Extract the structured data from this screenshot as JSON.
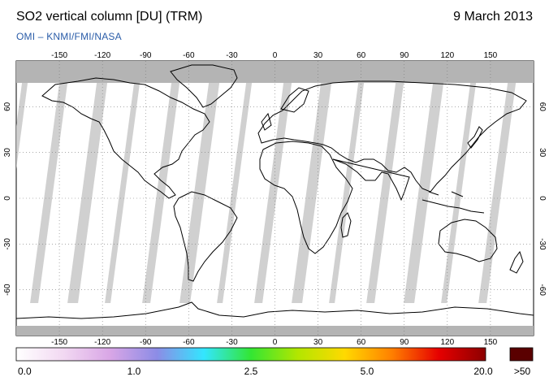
{
  "header": {
    "title": "SO2 vertical column [DU] (TRM)",
    "date": "9 March 2013",
    "credit": "OMI  –  KNMI/FMI/NASA"
  },
  "map": {
    "lon_ticks": [
      -150,
      -120,
      -90,
      -60,
      -30,
      0,
      30,
      60,
      90,
      120,
      150
    ],
    "lat_ticks": [
      60,
      30,
      0,
      -30,
      -60
    ],
    "lon_range": [
      -180,
      180
    ],
    "lat_range": [
      -90,
      90
    ],
    "no_data_color": "#c8c8c8",
    "polar_no_data_color": "#b4b4b4",
    "coastline_color": "#000000"
  },
  "colorbar": {
    "labels": [
      "0.0",
      "1.0",
      "2.5",
      "5.0",
      "20.0"
    ],
    "overflow_label": ">50",
    "overflow_color": "#5a0000",
    "stops": [
      "#ffffff",
      "#f2d9f2",
      "#d9a6e6",
      "#8c8ce6",
      "#33e6ff",
      "#33e633",
      "#b3e600",
      "#ffd900",
      "#ff8000",
      "#e60000",
      "#8c0000"
    ]
  }
}
